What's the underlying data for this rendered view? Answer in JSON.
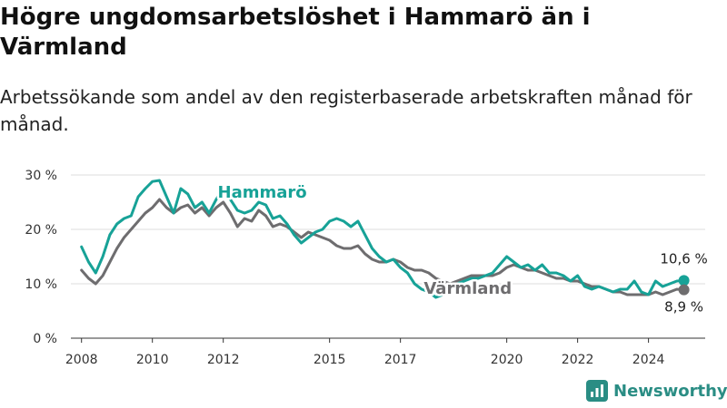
{
  "title": "Högre ungdomsarbetslöshet i Hammarö än i Värmland",
  "subtitle": "Arbetssökande som andel av den registerbaserade arbetskraften månad för månad.",
  "brand": {
    "name": "Newsworthy",
    "color": "#2a8d84"
  },
  "colors": {
    "hammaro": "#17a297",
    "varmland": "#6e6d6f",
    "grid": "#dddddd",
    "axis": "#333333"
  },
  "chart_data": {
    "type": "line",
    "title": "Högre ungdomsarbetslöshet i Hammarö än i Värmland",
    "xlabel": "",
    "ylabel": "",
    "ylim": [
      0,
      30
    ],
    "xlim": [
      2007.7,
      2025.6
    ],
    "grid": true,
    "legend": "inline labels",
    "x_ticks": [
      2008,
      2010,
      2012,
      2015,
      2017,
      2020,
      2022,
      2024
    ],
    "y_ticks": [
      {
        "value": 0,
        "label": "0 %"
      },
      {
        "value": 10,
        "label": "10 %"
      },
      {
        "value": 20,
        "label": "20 %"
      },
      {
        "value": 30,
        "label": "30 %"
      }
    ],
    "series": [
      {
        "name": "Hammarö",
        "color": "#17a297",
        "label_at": 2013.1,
        "label_value": 26,
        "end_label": "10,6 %",
        "x": [
          2008.0,
          2008.2,
          2008.4,
          2008.6,
          2008.8,
          2009.0,
          2009.2,
          2009.4,
          2009.6,
          2009.8,
          2010.0,
          2010.2,
          2010.4,
          2010.6,
          2010.8,
          2011.0,
          2011.2,
          2011.4,
          2011.6,
          2011.8,
          2012.0,
          2012.2,
          2012.4,
          2012.6,
          2012.8,
          2013.0,
          2013.2,
          2013.4,
          2013.6,
          2013.8,
          2014.0,
          2014.2,
          2014.4,
          2014.6,
          2014.8,
          2015.0,
          2015.2,
          2015.4,
          2015.6,
          2015.8,
          2016.0,
          2016.2,
          2016.4,
          2016.6,
          2016.8,
          2017.0,
          2017.2,
          2017.4,
          2017.6,
          2017.8,
          2018.0,
          2018.2,
          2018.4,
          2018.6,
          2018.8,
          2019.0,
          2019.2,
          2019.4,
          2019.6,
          2019.8,
          2020.0,
          2020.2,
          2020.4,
          2020.6,
          2020.8,
          2021.0,
          2021.2,
          2021.4,
          2021.6,
          2021.8,
          2022.0,
          2022.2,
          2022.4,
          2022.6,
          2022.8,
          2023.0,
          2023.2,
          2023.4,
          2023.6,
          2023.8,
          2024.0,
          2024.2,
          2024.4,
          2024.6,
          2024.8,
          2025.0
        ],
        "values": [
          16.8,
          14.0,
          12.0,
          15.0,
          19.0,
          21.0,
          22.0,
          22.5,
          26.0,
          27.5,
          28.8,
          29.0,
          26.0,
          23.0,
          27.5,
          26.5,
          24.0,
          25.0,
          23.0,
          25.5,
          27.5,
          25.5,
          23.5,
          23.0,
          23.5,
          25.0,
          24.5,
          22.0,
          22.5,
          21.0,
          19.0,
          17.5,
          18.5,
          19.5,
          20.0,
          21.5,
          22.0,
          21.5,
          20.5,
          21.5,
          19.0,
          16.5,
          15.0,
          14.0,
          14.5,
          13.0,
          12.0,
          10.0,
          9.0,
          8.5,
          7.5,
          8.0,
          9.0,
          10.0,
          10.5,
          11.0,
          11.0,
          11.5,
          12.0,
          13.5,
          15.0,
          14.0,
          13.0,
          13.5,
          12.5,
          13.5,
          12.0,
          12.0,
          11.5,
          10.5,
          11.5,
          9.5,
          9.0,
          9.5,
          9.0,
          8.5,
          9.0,
          9.0,
          10.5,
          8.5,
          8.0,
          10.5,
          9.5,
          10.0,
          10.5,
          10.6
        ]
      },
      {
        "name": "Värmland",
        "color": "#6e6d6f",
        "label_at": 2018.9,
        "label_value": 9.0,
        "end_label": "8,9 %",
        "x": [
          2008.0,
          2008.2,
          2008.4,
          2008.6,
          2008.8,
          2009.0,
          2009.2,
          2009.4,
          2009.6,
          2009.8,
          2010.0,
          2010.2,
          2010.4,
          2010.6,
          2010.8,
          2011.0,
          2011.2,
          2011.4,
          2011.6,
          2011.8,
          2012.0,
          2012.2,
          2012.4,
          2012.6,
          2012.8,
          2013.0,
          2013.2,
          2013.4,
          2013.6,
          2013.8,
          2014.0,
          2014.2,
          2014.4,
          2014.6,
          2014.8,
          2015.0,
          2015.2,
          2015.4,
          2015.6,
          2015.8,
          2016.0,
          2016.2,
          2016.4,
          2016.6,
          2016.8,
          2017.0,
          2017.2,
          2017.4,
          2017.6,
          2017.8,
          2018.0,
          2018.2,
          2018.4,
          2018.6,
          2018.8,
          2019.0,
          2019.2,
          2019.4,
          2019.6,
          2019.8,
          2020.0,
          2020.2,
          2020.4,
          2020.6,
          2020.8,
          2021.0,
          2021.2,
          2021.4,
          2021.6,
          2021.8,
          2022.0,
          2022.2,
          2022.4,
          2022.6,
          2022.8,
          2023.0,
          2023.2,
          2023.4,
          2023.6,
          2023.8,
          2024.0,
          2024.2,
          2024.4,
          2024.6,
          2024.8,
          2025.0
        ],
        "values": [
          12.5,
          11.0,
          10.0,
          11.5,
          14.0,
          16.5,
          18.5,
          20.0,
          21.5,
          23.0,
          24.0,
          25.5,
          24.0,
          23.0,
          24.0,
          24.5,
          23.0,
          24.0,
          22.5,
          24.0,
          25.0,
          23.0,
          20.5,
          22.0,
          21.5,
          23.5,
          22.5,
          20.5,
          21.0,
          20.5,
          19.5,
          18.5,
          19.5,
          19.0,
          18.5,
          18.0,
          17.0,
          16.5,
          16.5,
          17.0,
          15.5,
          14.5,
          14.0,
          14.0,
          14.5,
          14.0,
          13.0,
          12.5,
          12.5,
          12.0,
          11.0,
          10.5,
          10.0,
          10.5,
          11.0,
          11.5,
          11.5,
          11.5,
          11.5,
          12.0,
          13.0,
          13.5,
          13.0,
          12.5,
          12.5,
          12.0,
          11.5,
          11.0,
          11.0,
          10.5,
          10.5,
          10.0,
          9.5,
          9.5,
          9.0,
          8.5,
          8.5,
          8.0,
          8.0,
          8.0,
          8.0,
          8.5,
          8.0,
          8.5,
          9.0,
          8.9
        ]
      }
    ]
  }
}
